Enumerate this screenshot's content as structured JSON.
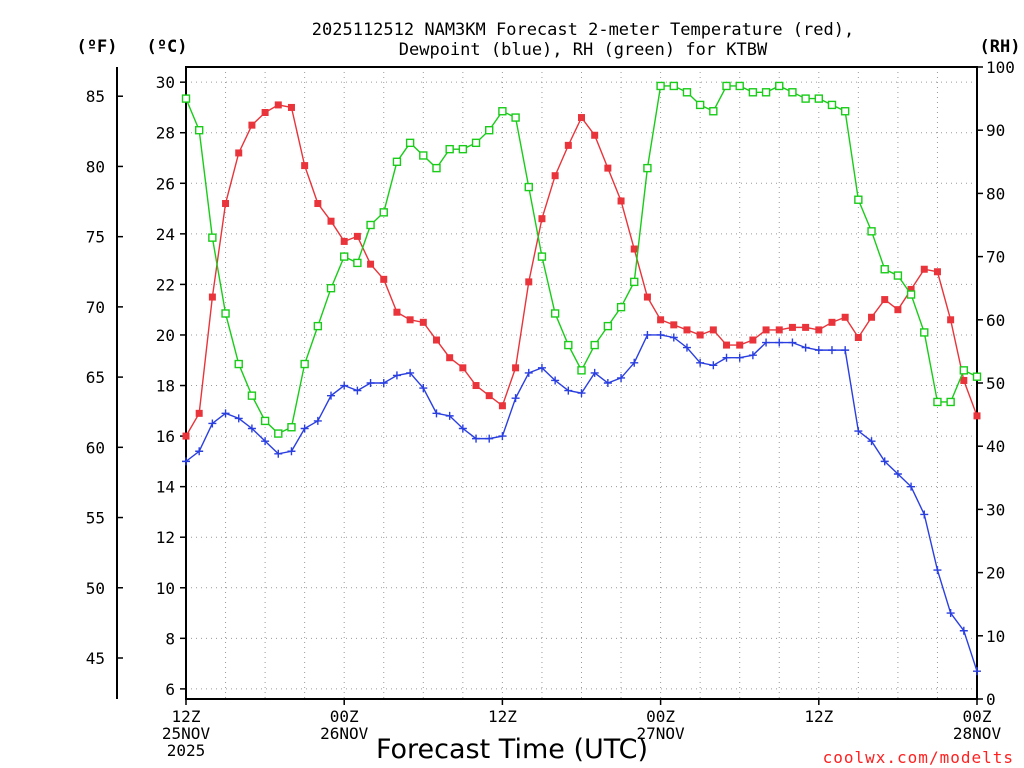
{
  "chart_data": {
    "type": "line",
    "title_line1": "2025112512 NAM3KM Forecast 2-meter Temperature (red),",
    "title_line2": "Dewpoint (blue), RH (green) for KTBW",
    "unit_f": "(ºF)",
    "unit_c": "(ºC)",
    "unit_rh": "(RH)",
    "xlabel": "Forecast Time (UTC)",
    "credit": "coolwx.com/modelts",
    "x_range": [
      0,
      60
    ],
    "y_left_c": {
      "min": 5.6,
      "max": 30.6,
      "ticks": [
        6,
        8,
        10,
        12,
        14,
        16,
        18,
        20,
        22,
        24,
        26,
        28,
        30
      ]
    },
    "y_left_f": {
      "ticks": [
        45,
        50,
        55,
        60,
        65,
        70,
        75,
        80,
        85
      ]
    },
    "y_right_rh": {
      "min": 0,
      "max": 100,
      "ticks": [
        0,
        10,
        20,
        30,
        40,
        50,
        60,
        70,
        80,
        90,
        100
      ]
    },
    "x_ticks": [
      {
        "hour": 0,
        "lines": [
          "12Z",
          "25NOV",
          "2025"
        ]
      },
      {
        "hour": 12,
        "lines": [
          "00Z",
          "26NOV"
        ]
      },
      {
        "hour": 24,
        "lines": [
          "12Z"
        ]
      },
      {
        "hour": 36,
        "lines": [
          "00Z",
          "27NOV"
        ]
      },
      {
        "hour": 48,
        "lines": [
          "12Z"
        ]
      },
      {
        "hour": 60,
        "lines": [
          "00Z",
          "28NOV"
        ]
      }
    ],
    "series": [
      {
        "name": "Temperature",
        "unit": "C",
        "color": "#e8343a",
        "marker": "filled-square",
        "values": [
          16.0,
          16.9,
          21.5,
          25.2,
          27.2,
          28.3,
          28.8,
          29.1,
          29.0,
          26.7,
          25.2,
          24.5,
          23.7,
          23.9,
          22.8,
          22.2,
          20.9,
          20.6,
          20.5,
          19.8,
          19.1,
          18.7,
          18.0,
          17.6,
          17.2,
          18.7,
          22.1,
          24.6,
          26.3,
          27.5,
          28.6,
          27.9,
          26.6,
          25.3,
          23.4,
          21.5,
          20.6,
          20.4,
          20.2,
          20.0,
          20.2,
          19.6,
          19.6,
          19.8,
          20.2,
          20.2,
          20.3,
          20.3,
          20.2,
          20.5,
          20.7,
          19.9,
          20.7,
          21.4,
          21.0,
          21.8,
          22.6,
          22.5,
          20.6,
          18.2,
          16.8
        ]
      },
      {
        "name": "Dewpoint",
        "unit": "C",
        "color": "#2a3fe0",
        "marker": "plus",
        "values": [
          15.0,
          15.4,
          16.5,
          16.9,
          16.7,
          16.3,
          15.8,
          15.3,
          15.4,
          16.3,
          16.6,
          17.6,
          18.0,
          17.8,
          18.1,
          18.1,
          18.4,
          18.5,
          17.9,
          16.9,
          16.8,
          16.3,
          15.9,
          15.9,
          16.0,
          17.5,
          18.5,
          18.7,
          18.2,
          17.8,
          17.7,
          18.5,
          18.1,
          18.3,
          18.9,
          20.0,
          20.0,
          19.9,
          19.5,
          18.9,
          18.8,
          19.1,
          19.1,
          19.2,
          19.7,
          19.7,
          19.7,
          19.5,
          19.4,
          19.4,
          19.4,
          16.2,
          15.8,
          15.0,
          14.5,
          14.0,
          12.9,
          10.7,
          9.0,
          8.3,
          6.7
        ]
      },
      {
        "name": "RH",
        "unit": "%",
        "color": "#18cc18",
        "marker": "open-square",
        "values": [
          95,
          90,
          73,
          61,
          53,
          48,
          44,
          42,
          43,
          53,
          59,
          65,
          70,
          69,
          75,
          77,
          85,
          88,
          86,
          84,
          87,
          87,
          88,
          90,
          93,
          92,
          81,
          70,
          61,
          56,
          52,
          56,
          59,
          62,
          66,
          84,
          97,
          97,
          96,
          94,
          93,
          97,
          97,
          96,
          96,
          97,
          96,
          95,
          95,
          94,
          93,
          79,
          74,
          68,
          67,
          64,
          58,
          47,
          47,
          52,
          51
        ]
      }
    ]
  }
}
